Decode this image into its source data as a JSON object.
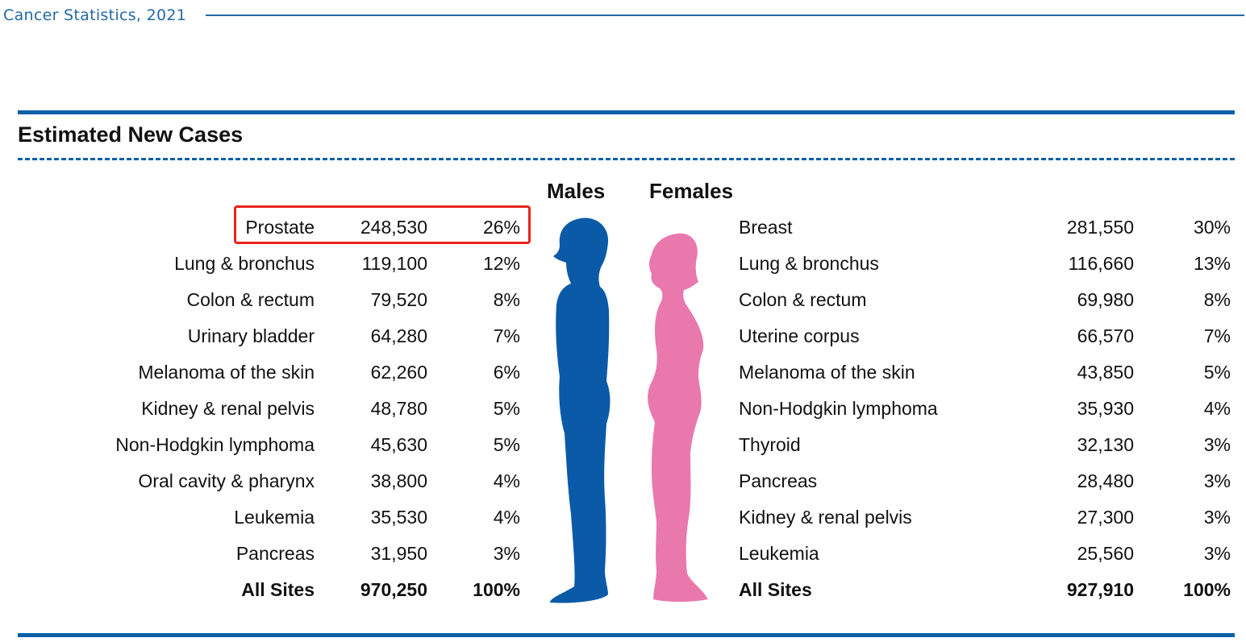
{
  "header": {
    "title": "Cancer Statistics, 2021"
  },
  "section": {
    "title": "Estimated New Cases"
  },
  "columns": {
    "males": "Males",
    "females": "Females"
  },
  "colors": {
    "rule": "#0a60a8",
    "male_silhouette": "#0a5aa8",
    "female_silhouette": "#e978ad",
    "highlight": "#e8231e"
  },
  "males": {
    "rows": [
      {
        "site": "Prostate",
        "cases": "248,530",
        "pct": "26%"
      },
      {
        "site": "Lung & bronchus",
        "cases": "119,100",
        "pct": "12%"
      },
      {
        "site": "Colon & rectum",
        "cases": "79,520",
        "pct": "8%"
      },
      {
        "site": "Urinary bladder",
        "cases": "64,280",
        "pct": "7%"
      },
      {
        "site": "Melanoma of the skin",
        "cases": "62,260",
        "pct": "6%"
      },
      {
        "site": "Kidney & renal pelvis",
        "cases": "48,780",
        "pct": "5%"
      },
      {
        "site": "Non-Hodgkin lymphoma",
        "cases": "45,630",
        "pct": "5%"
      },
      {
        "site": "Oral cavity & pharynx",
        "cases": "38,800",
        "pct": "4%"
      },
      {
        "site": "Leukemia",
        "cases": "35,530",
        "pct": "4%"
      },
      {
        "site": "Pancreas",
        "cases": "31,950",
        "pct": "3%"
      }
    ],
    "total": {
      "site": "All Sites",
      "cases": "970,250",
      "pct": "100%"
    }
  },
  "females": {
    "rows": [
      {
        "site": "Breast",
        "cases": "281,550",
        "pct": "30%"
      },
      {
        "site": "Lung & bronchus",
        "cases": "116,660",
        "pct": "13%"
      },
      {
        "site": "Colon & rectum",
        "cases": "69,980",
        "pct": "8%"
      },
      {
        "site": "Uterine corpus",
        "cases": "66,570",
        "pct": "7%"
      },
      {
        "site": "Melanoma of the skin",
        "cases": "43,850",
        "pct": "5%"
      },
      {
        "site": "Non-Hodgkin lymphoma",
        "cases": "35,930",
        "pct": "4%"
      },
      {
        "site": "Thyroid",
        "cases": "32,130",
        "pct": "3%"
      },
      {
        "site": "Pancreas",
        "cases": "28,480",
        "pct": "3%"
      },
      {
        "site": "Kidney & renal pelvis",
        "cases": "27,300",
        "pct": "3%"
      },
      {
        "site": "Leukemia",
        "cases": "25,560",
        "pct": "3%"
      }
    ],
    "total": {
      "site": "All Sites",
      "cases": "927,910",
      "pct": "100%"
    }
  }
}
